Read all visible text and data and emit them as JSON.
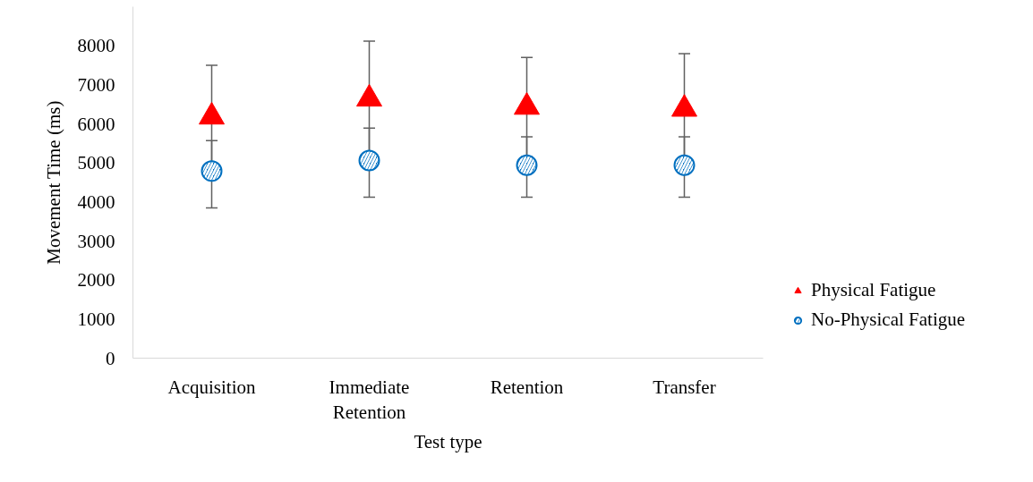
{
  "chart_data": {
    "type": "scatter",
    "xlabel": "Test type",
    "ylabel": "Movement Time (ms)",
    "categories": [
      "Acquisition",
      "Immediate Retention",
      "Retention",
      "Transfer"
    ],
    "series": [
      {
        "name": "Physical Fatigue",
        "color": "#ff0000",
        "marker": "triangle",
        "values": [
          6180,
          6640,
          6430,
          6380
        ],
        "errors": [
          [
            4860,
            7500
          ],
          [
            5160,
            8120
          ],
          [
            5160,
            7700
          ],
          [
            4960,
            7800
          ]
        ]
      },
      {
        "name": "No-Physical Fatigue",
        "color": "#0070c0",
        "marker": "circle",
        "values": [
          4790,
          5060,
          4940,
          4940
        ],
        "errors": [
          [
            3850,
            5570
          ],
          [
            4120,
            5890
          ],
          [
            4120,
            5670
          ],
          [
            4120,
            5670
          ]
        ]
      }
    ],
    "ylim": [
      0,
      9000
    ],
    "yticks": [
      0,
      1000,
      2000,
      3000,
      4000,
      5000,
      6000,
      7000,
      8000
    ],
    "legend": "right"
  }
}
